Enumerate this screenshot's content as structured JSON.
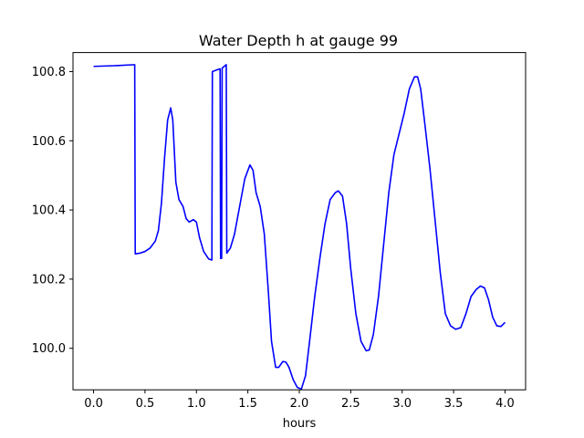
{
  "chart_data": {
    "type": "line",
    "title": "Water Depth h at gauge 99",
    "xlabel": "hours",
    "ylabel": "",
    "xlim": [
      -0.2,
      4.2
    ],
    "ylim": [
      99.88,
      100.855
    ],
    "x_ticks": [
      0.0,
      0.5,
      1.0,
      1.5,
      2.0,
      2.5,
      3.0,
      3.5,
      4.0
    ],
    "x_tick_labels": [
      "0.0",
      "0.5",
      "1.0",
      "1.5",
      "2.0",
      "2.5",
      "3.0",
      "3.5",
      "4.0"
    ],
    "y_ticks": [
      100.0,
      100.2,
      100.4,
      100.6,
      100.8
    ],
    "y_tick_labels": [
      "100.0",
      "100.2",
      "100.4",
      "100.6",
      "100.8"
    ],
    "grid": false,
    "legend": "none",
    "series": [
      {
        "color": "#0000ff",
        "points": [
          [
            0.0,
            100.815
          ],
          [
            0.2,
            100.817
          ],
          [
            0.4,
            100.82
          ],
          [
            0.405,
            100.273
          ],
          [
            0.45,
            100.275
          ],
          [
            0.5,
            100.28
          ],
          [
            0.55,
            100.29
          ],
          [
            0.6,
            100.31
          ],
          [
            0.63,
            100.34
          ],
          [
            0.66,
            100.42
          ],
          [
            0.69,
            100.55
          ],
          [
            0.72,
            100.66
          ],
          [
            0.75,
            100.695
          ],
          [
            0.77,
            100.66
          ],
          [
            0.8,
            100.48
          ],
          [
            0.83,
            100.43
          ],
          [
            0.87,
            100.41
          ],
          [
            0.9,
            100.375
          ],
          [
            0.93,
            100.365
          ],
          [
            0.97,
            100.372
          ],
          [
            1.0,
            100.365
          ],
          [
            1.03,
            100.32
          ],
          [
            1.07,
            100.28
          ],
          [
            1.12,
            100.258
          ],
          [
            1.15,
            100.255
          ],
          [
            1.155,
            100.8
          ],
          [
            1.2,
            100.805
          ],
          [
            1.23,
            100.808
          ],
          [
            1.235,
            100.26
          ],
          [
            1.245,
            100.26
          ],
          [
            1.25,
            100.81
          ],
          [
            1.27,
            100.815
          ],
          [
            1.29,
            100.82
          ],
          [
            1.295,
            100.275
          ],
          [
            1.33,
            100.29
          ],
          [
            1.37,
            100.33
          ],
          [
            1.42,
            100.41
          ],
          [
            1.47,
            100.49
          ],
          [
            1.52,
            100.53
          ],
          [
            1.55,
            100.515
          ],
          [
            1.58,
            100.45
          ],
          [
            1.62,
            100.41
          ],
          [
            1.66,
            100.33
          ],
          [
            1.7,
            100.16
          ],
          [
            1.73,
            100.02
          ],
          [
            1.77,
            99.945
          ],
          [
            1.8,
            99.945
          ],
          [
            1.84,
            99.962
          ],
          [
            1.87,
            99.96
          ],
          [
            1.9,
            99.945
          ],
          [
            1.94,
            99.91
          ],
          [
            1.98,
            99.887
          ],
          [
            2.02,
            99.882
          ],
          [
            2.06,
            99.92
          ],
          [
            2.1,
            100.02
          ],
          [
            2.15,
            100.15
          ],
          [
            2.2,
            100.26
          ],
          [
            2.25,
            100.36
          ],
          [
            2.3,
            100.43
          ],
          [
            2.35,
            100.45
          ],
          [
            2.38,
            100.455
          ],
          [
            2.42,
            100.44
          ],
          [
            2.46,
            100.36
          ],
          [
            2.5,
            100.23
          ],
          [
            2.55,
            100.1
          ],
          [
            2.6,
            100.02
          ],
          [
            2.65,
            99.993
          ],
          [
            2.68,
            99.995
          ],
          [
            2.72,
            100.04
          ],
          [
            2.77,
            100.15
          ],
          [
            2.82,
            100.3
          ],
          [
            2.87,
            100.45
          ],
          [
            2.92,
            100.56
          ],
          [
            2.97,
            100.62
          ],
          [
            3.02,
            100.68
          ],
          [
            3.07,
            100.75
          ],
          [
            3.12,
            100.785
          ],
          [
            3.15,
            100.785
          ],
          [
            3.18,
            100.75
          ],
          [
            3.22,
            100.65
          ],
          [
            3.27,
            100.52
          ],
          [
            3.32,
            100.37
          ],
          [
            3.37,
            100.22
          ],
          [
            3.42,
            100.1
          ],
          [
            3.47,
            100.065
          ],
          [
            3.52,
            100.055
          ],
          [
            3.57,
            100.06
          ],
          [
            3.62,
            100.1
          ],
          [
            3.67,
            100.15
          ],
          [
            3.72,
            100.17
          ],
          [
            3.76,
            100.18
          ],
          [
            3.8,
            100.175
          ],
          [
            3.84,
            100.14
          ],
          [
            3.88,
            100.09
          ],
          [
            3.92,
            100.065
          ],
          [
            3.96,
            100.063
          ],
          [
            4.0,
            100.075
          ]
        ]
      }
    ]
  }
}
